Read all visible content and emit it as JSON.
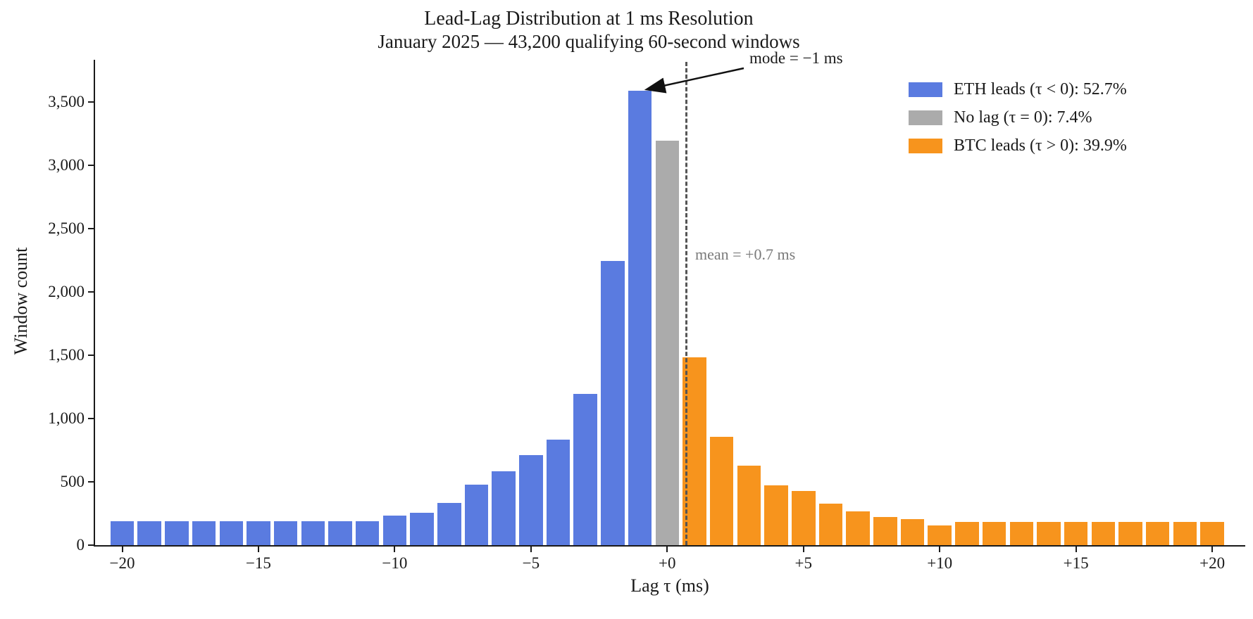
{
  "figure": {
    "title": "Lead-Lag Distribution at 1 ms Resolution",
    "subtitle": "January 2025 — 43,200 qualifying 60-second windows"
  },
  "axes": {
    "x_label": "Lag τ (ms)",
    "y_label": "Window count",
    "x_ticks": [
      {
        "value": -20,
        "label": "−20"
      },
      {
        "value": -15,
        "label": "−15"
      },
      {
        "value": -10,
        "label": "−10"
      },
      {
        "value": -5,
        "label": "−5"
      },
      {
        "value": 0,
        "label": "+0"
      },
      {
        "value": 5,
        "label": "+5"
      },
      {
        "value": 10,
        "label": "+10"
      },
      {
        "value": 15,
        "label": "+15"
      },
      {
        "value": 20,
        "label": "+20"
      }
    ],
    "y_ticks": [
      {
        "value": 0,
        "label": "0"
      },
      {
        "value": 500,
        "label": "500"
      },
      {
        "value": 1000,
        "label": "1,000"
      },
      {
        "value": 1500,
        "label": "1,500"
      },
      {
        "value": 2000,
        "label": "2,000"
      },
      {
        "value": 2500,
        "label": "2,500"
      },
      {
        "value": 3000,
        "label": "3,000"
      },
      {
        "value": 3500,
        "label": "3,500"
      }
    ]
  },
  "annotations": {
    "mode": {
      "text": "mode = −1 ms",
      "tau_ms": -1
    },
    "mean": {
      "text": "mean = +0.7 ms",
      "tau_ms": 0.7
    }
  },
  "legend": [
    {
      "label": "ETH leads (τ < 0): 52.7%",
      "color": "#5A7BE0"
    },
    {
      "label": "No lag (τ = 0): 7.4%",
      "color": "#ABABAB"
    },
    {
      "label": "BTC leads (τ > 0): 39.9%",
      "color": "#F7941D"
    }
  ],
  "chart_data": {
    "type": "bar",
    "title": "Lead-Lag Distribution at 1 ms Resolution",
    "subtitle": "January 2025 — 43,200 qualifying 60-second windows",
    "xlabel": "Lag τ (ms)",
    "ylabel": "Window count",
    "xlim": [
      -21.5,
      21.5
    ],
    "ylim": [
      0,
      3833
    ],
    "grid": false,
    "legend_position": "upper right",
    "x": [
      -20,
      -19,
      -18,
      -17,
      -16,
      -15,
      -14,
      -13,
      -12,
      -11,
      -10,
      -9,
      -8,
      -7,
      -6,
      -5,
      -4,
      -3,
      -2,
      -1,
      0,
      1,
      2,
      3,
      4,
      5,
      6,
      7,
      8,
      9,
      10,
      11,
      12,
      13,
      14,
      15,
      16,
      17,
      18,
      19,
      20
    ],
    "values": [
      190,
      190,
      190,
      190,
      190,
      190,
      190,
      190,
      190,
      190,
      235,
      255,
      335,
      480,
      585,
      710,
      835,
      1195,
      2245,
      3590,
      3197,
      1485,
      858,
      628,
      475,
      428,
      330,
      265,
      222,
      205,
      155,
      185,
      185,
      185,
      185,
      185,
      185,
      185,
      185,
      185,
      185
    ],
    "series_colors": {
      "eth_leads_negative": "#5A7BE0",
      "no_lag_zero": "#ABABAB",
      "btc_leads_positive": "#F7941D"
    },
    "mean_ms": 0.7,
    "mode_ms": -1,
    "total_windows": 43200,
    "shares": {
      "eth_leads_pct": 52.7,
      "no_lag_pct": 7.4,
      "btc_leads_pct": 39.9
    }
  }
}
